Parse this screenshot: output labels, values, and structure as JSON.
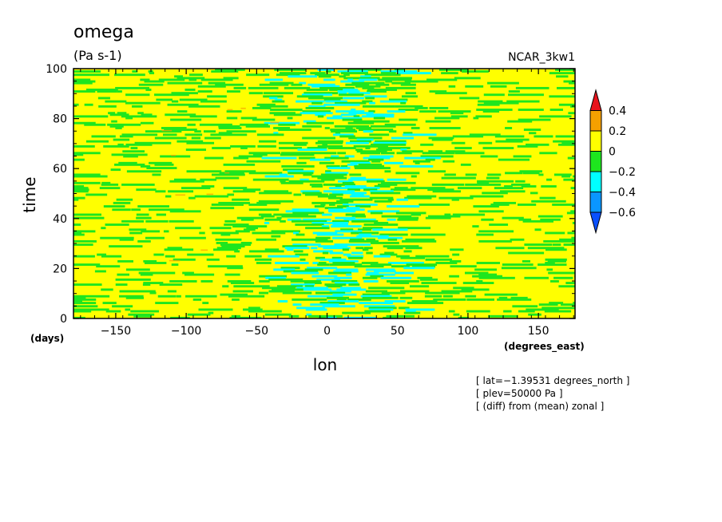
{
  "chart_data": {
    "type": "heatmap",
    "title": "omega",
    "units": "(Pa s-1)",
    "dataset": "NCAR_3kw1",
    "xlabel": "lon",
    "ylabel": "time",
    "x_units": "(degrees_east)",
    "y_units": "(days)",
    "xlim": [
      -180,
      176
    ],
    "ylim": [
      0,
      100
    ],
    "x_ticks": [
      -150,
      -100,
      -50,
      0,
      50,
      100,
      150
    ],
    "y_ticks": [
      0,
      20,
      40,
      60,
      80,
      100
    ],
    "x_tick_labels": [
      "−150",
      "−100",
      "−50",
      "0",
      "50",
      "100",
      "150"
    ],
    "y_tick_labels": [
      "0",
      "20",
      "40",
      "60",
      "80",
      "100"
    ],
    "colorbar": {
      "levels": [
        0.4,
        0.2,
        0,
        -0.2,
        -0.4,
        -0.6
      ],
      "labels": [
        "0.4",
        "0.2",
        "0",
        "−0.2",
        "−0.4",
        "−0.6"
      ],
      "colors": [
        "#e8141c",
        "#f5a000",
        "#ffff00",
        "#1ee61e",
        "#00ffff",
        "#0a96ff",
        "#0a50ff"
      ]
    },
    "annotations": [
      "[ lat=−1.39531 degrees_north ]",
      "[ plev=50000 Pa ]",
      "[ (diff) from (mean) zonal ]"
    ]
  }
}
